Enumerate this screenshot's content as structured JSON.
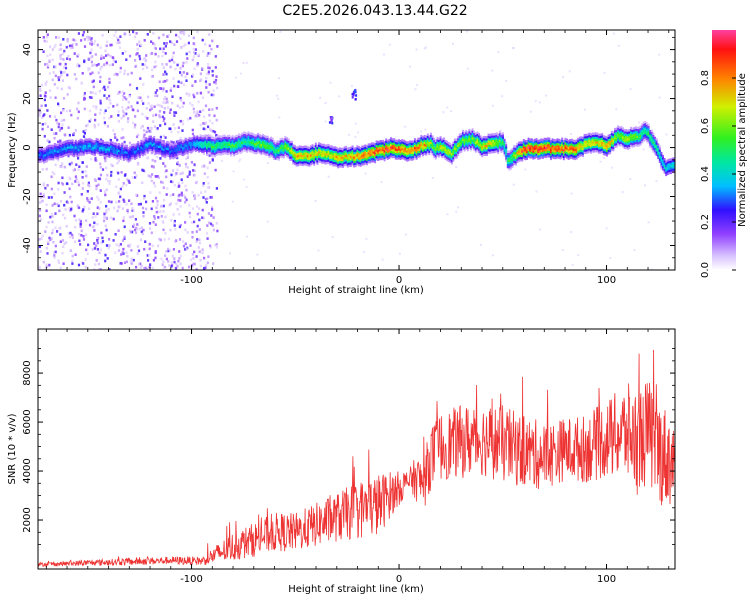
{
  "title": "C2E5.2026.043.13.44.G22",
  "chart_data": [
    {
      "type": "heatmap",
      "panel": "top",
      "xlabel": "Height of straight line (km)",
      "ylabel": "Frequency (Hz)",
      "xlim": [
        -174,
        133
      ],
      "ylim": [
        -50,
        48
      ],
      "xticks": [
        -100,
        0,
        100
      ],
      "yticks": [
        -40,
        -20,
        0,
        20,
        40
      ],
      "colorbar": {
        "label": "Normalized spectral amplitude",
        "range": [
          0,
          1
        ],
        "ticks": [
          0.0,
          0.2,
          0.4,
          0.6,
          0.8
        ],
        "tick_labels": [
          "0.0",
          "0.2",
          "0.4",
          "0.6",
          "0.8"
        ]
      },
      "ridge": {
        "description": "dominant frequency track (Hz) vs height (km)",
        "x": [
          -174,
          -160,
          -150,
          -140,
          -130,
          -120,
          -110,
          -100,
          -90,
          -85,
          -80,
          -75,
          -70,
          -65,
          -60,
          -55,
          -50,
          -45,
          -40,
          -35,
          -30,
          -25,
          -20,
          -15,
          -10,
          -5,
          0,
          5,
          10,
          15,
          17,
          20,
          25,
          30,
          35,
          40,
          45,
          50,
          52,
          55,
          60,
          65,
          70,
          75,
          80,
          85,
          90,
          95,
          100,
          105,
          110,
          115,
          118,
          122,
          125,
          128,
          133
        ],
        "y": [
          -3,
          0,
          1,
          0,
          -2,
          2,
          -1,
          2,
          1,
          2,
          1,
          3,
          2,
          2,
          -1,
          1,
          -3,
          -3,
          -2,
          -2,
          -4,
          -3,
          -3,
          -2,
          -1,
          0,
          0,
          -1,
          1,
          2,
          0,
          1,
          -2,
          3,
          4,
          1,
          2,
          3,
          -5,
          -3,
          0,
          0,
          0,
          0,
          0,
          0,
          2,
          3,
          1,
          5,
          4,
          5,
          8,
          3,
          -2,
          -8,
          -6
        ],
        "peak_amplitude": [
          0.3,
          0.35,
          0.35,
          0.35,
          0.3,
          0.35,
          0.3,
          0.35,
          0.55,
          0.5,
          0.55,
          0.5,
          0.55,
          0.6,
          0.5,
          0.6,
          0.75,
          0.75,
          0.75,
          0.7,
          0.75,
          0.75,
          0.8,
          0.85,
          0.9,
          0.9,
          0.9,
          0.85,
          0.85,
          0.65,
          0.6,
          0.7,
          0.65,
          0.6,
          0.6,
          0.75,
          0.7,
          0.5,
          0.5,
          0.6,
          0.95,
          0.95,
          0.95,
          0.9,
          0.9,
          0.85,
          0.75,
          0.7,
          0.85,
          0.6,
          0.7,
          0.55,
          0.5,
          0.5,
          0.45,
          0.4,
          0.4
        ]
      },
      "noise_region_x": [
        -174,
        -88
      ],
      "isolated_blobs": [
        {
          "x": -22,
          "y": 22
        },
        {
          "x": -33,
          "y": 11
        }
      ]
    },
    {
      "type": "line",
      "panel": "bottom",
      "xlabel": "Height of straight line (km)",
      "ylabel": "SNR (10 * v/v)",
      "xlim": [
        -174,
        133
      ],
      "ylim": [
        0,
        9800
      ],
      "xticks": [
        -100,
        0,
        100
      ],
      "yticks": [
        2000,
        4000,
        6000,
        8000
      ],
      "color": "#ee3333",
      "envelope": {
        "description": "approximate SNR trace: x in km, base level and oscillation amplitude",
        "x": [
          -174,
          -150,
          -130,
          -110,
          -95,
          -88,
          -80,
          -70,
          -60,
          -50,
          -40,
          -30,
          -20,
          -10,
          -5,
          0,
          5,
          8,
          12,
          15,
          20,
          30,
          40,
          50,
          60,
          70,
          80,
          90,
          100,
          110,
          115,
          120,
          125,
          130,
          133
        ],
        "base": [
          180,
          250,
          300,
          350,
          330,
          600,
          900,
          1200,
          1500,
          1500,
          1800,
          2100,
          2400,
          2600,
          3000,
          3300,
          3600,
          3700,
          3500,
          4500,
          5000,
          5200,
          5300,
          5100,
          4800,
          4600,
          4900,
          4900,
          5300,
          5600,
          5200,
          5600,
          4800,
          4500,
          4300
        ],
        "amp": [
          80,
          120,
          150,
          160,
          180,
          400,
          600,
          700,
          800,
          800,
          900,
          1000,
          1200,
          1300,
          1000,
          700,
          500,
          900,
          1100,
          1300,
          1400,
          1500,
          1500,
          1600,
          1500,
          1400,
          1300,
          1400,
          1600,
          2000,
          2200,
          2200,
          2200,
          2000,
          1600
        ]
      }
    }
  ]
}
